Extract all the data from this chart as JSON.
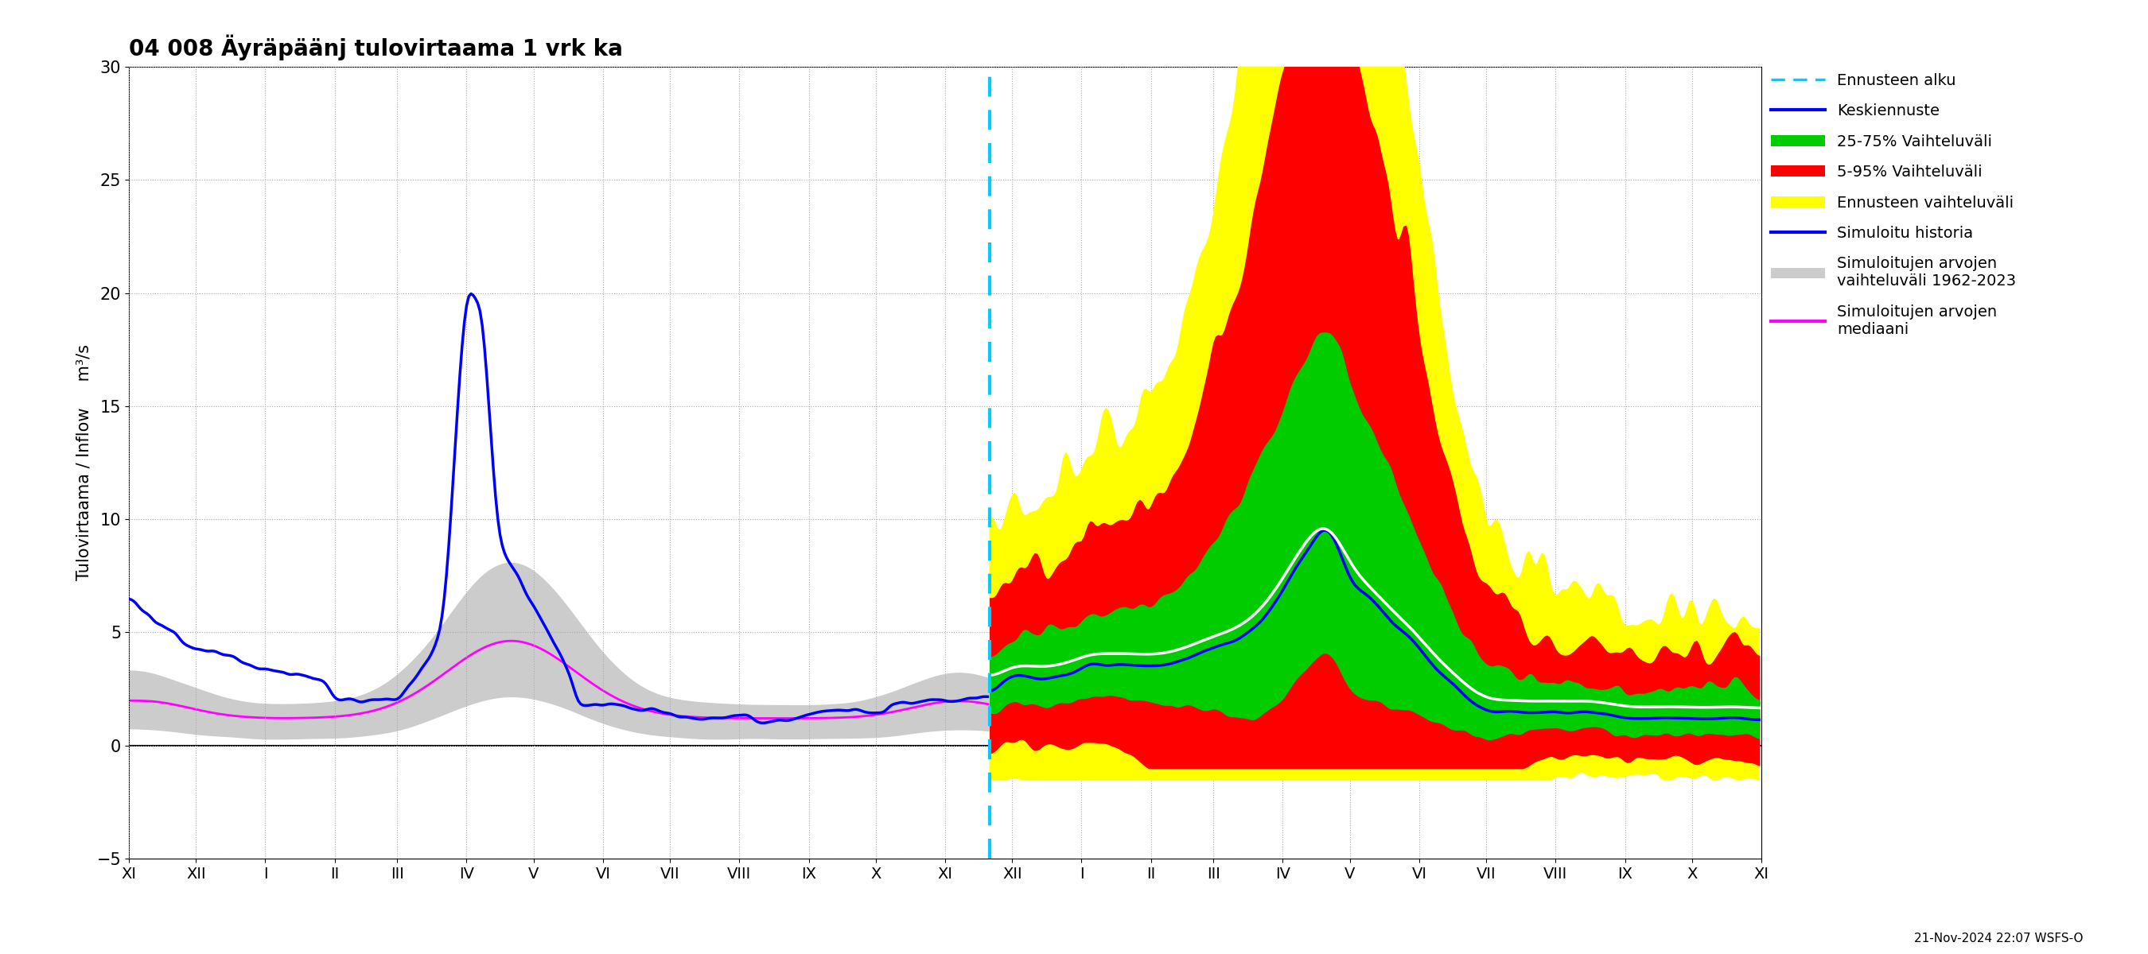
{
  "title": "04 008 Äyräpäänj tulovirtaama 1 vrk ka",
  "ylabel": "Tulovirtaama / Inflow     m³/s",
  "ylim": [
    -5,
    30
  ],
  "yticks": [
    -5,
    0,
    5,
    10,
    15,
    20,
    25,
    30
  ],
  "background_color": "#ffffff",
  "grid_color": "#aaaaaa",
  "cyan_color": "#00ccff",
  "blue_color": "#0000ff",
  "green_color": "#00cc00",
  "red_color": "#ff0000",
  "yellow_color": "#ffff00",
  "magenta_color": "#ff00ff",
  "white_color": "#ffffff",
  "gray_color": "#cccccc",
  "timestamp_label": "21-Nov-2024 22:07 WSFS-O",
  "title_fontsize": 20,
  "label_fontsize": 15,
  "tick_fontsize": 15,
  "legend_fontsize": 14
}
